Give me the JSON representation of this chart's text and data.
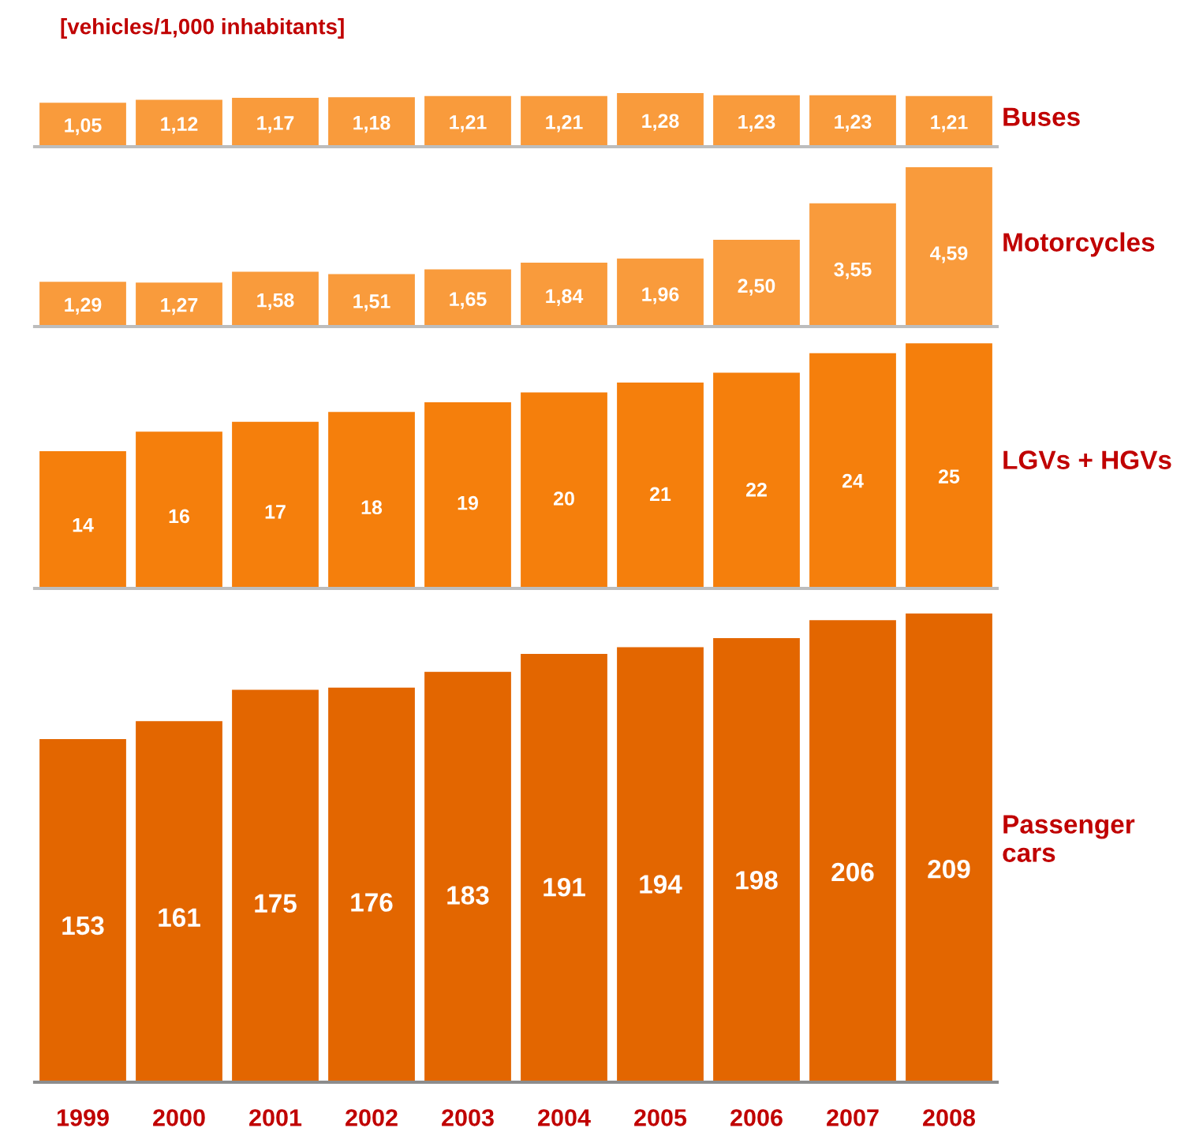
{
  "chart_data": [
    {
      "type": "bar",
      "title": "[vehicles/1,000 inhabitants]",
      "categories": [
        "1999",
        "2000",
        "2001",
        "2002",
        "2003",
        "2004",
        "2005",
        "2006",
        "2007",
        "2008"
      ],
      "tick_labels": false,
      "legend": false,
      "grid": false,
      "series": [
        {
          "name": "Buses",
          "color": "#f99b3c",
          "values": [
            1.05,
            1.12,
            1.17,
            1.18,
            1.21,
            1.21,
            1.28,
            1.23,
            1.23,
            1.21
          ],
          "value_labels": [
            "1,05",
            "1,12",
            "1,17",
            "1,18",
            "1,21",
            "1,21",
            "1,28",
            "1,23",
            "1,23",
            "1,21"
          ]
        }
      ]
    },
    {
      "type": "bar",
      "categories": [
        "1999",
        "2000",
        "2001",
        "2002",
        "2003",
        "2004",
        "2005",
        "2006",
        "2007",
        "2008"
      ],
      "tick_labels": false,
      "legend": false,
      "grid": false,
      "series": [
        {
          "name": "Motorcycles",
          "color": "#f99b3c",
          "values": [
            1.29,
            1.27,
            1.58,
            1.51,
            1.65,
            1.84,
            1.96,
            2.5,
            3.55,
            4.59
          ],
          "value_labels": [
            "1,29",
            "1,27",
            "1,58",
            "1,51",
            "1,65",
            "1,84",
            "1,96",
            "2,50",
            "3,55",
            "4,59"
          ]
        }
      ]
    },
    {
      "type": "bar",
      "categories": [
        "1999",
        "2000",
        "2001",
        "2002",
        "2003",
        "2004",
        "2005",
        "2006",
        "2007",
        "2008"
      ],
      "tick_labels": false,
      "legend": false,
      "grid": false,
      "data_labels": true,
      "series": [
        {
          "name": "LGVs + HGVs",
          "color": "#f57f0c",
          "values": [
            14,
            16,
            17,
            18,
            19,
            20,
            21,
            22,
            24,
            25
          ]
        }
      ]
    },
    {
      "type": "bar",
      "categories": [
        "1999",
        "2000",
        "2001",
        "2002",
        "2003",
        "2004",
        "2005",
        "2006",
        "2007",
        "2008"
      ],
      "tick_labels": "x",
      "legend": false,
      "grid": false,
      "data_labels": true,
      "series": [
        {
          "name": "Passenger cars",
          "color": "#e36600",
          "values": [
            153,
            161,
            175,
            176,
            183,
            191,
            194,
            198,
            206,
            209
          ]
        }
      ]
    }
  ]
}
